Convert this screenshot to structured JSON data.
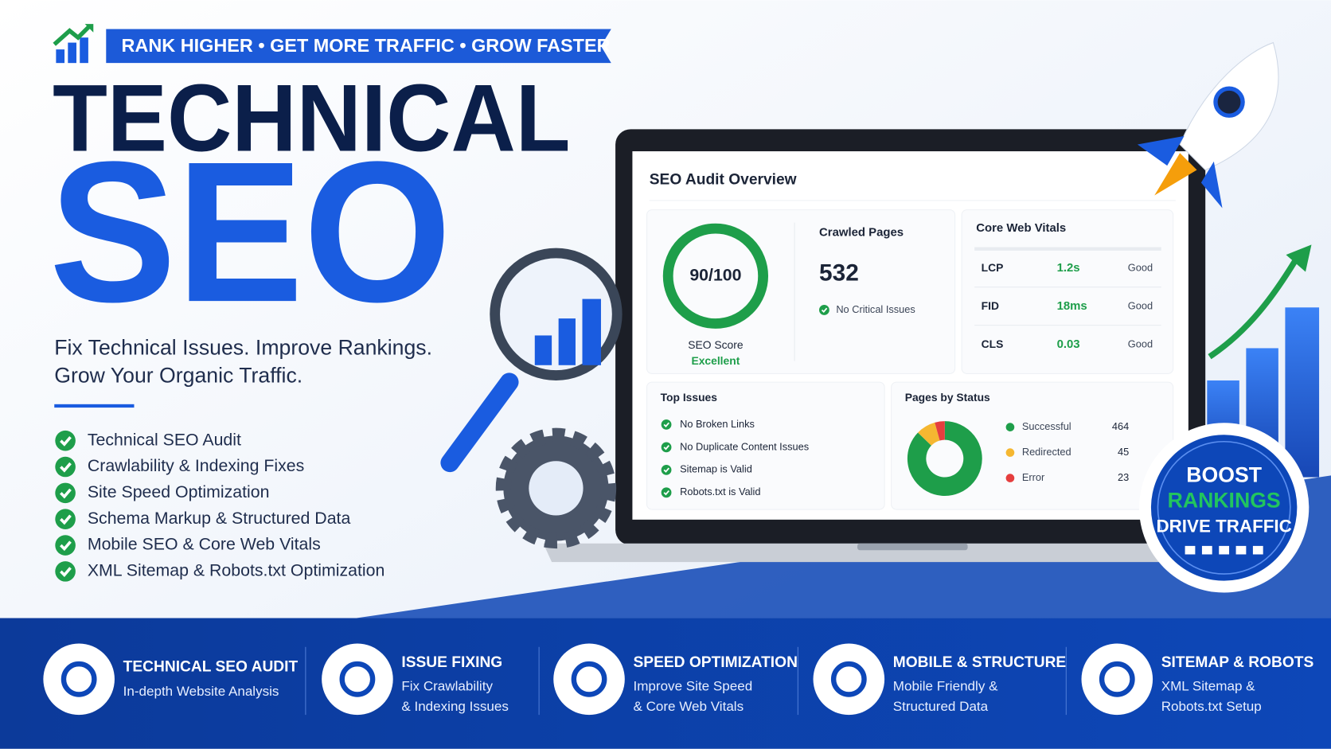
{
  "banner": "RANK HIGHER • GET MORE TRAFFIC • GROW FASTER",
  "title_line1": "TECHNICAL",
  "title_line2": "SEO",
  "tagline": [
    "Fix Technical Issues. Improve Rankings.",
    "Grow Your Organic Traffic."
  ],
  "features": [
    "Technical SEO Audit",
    "Crawlability & Indexing Fixes",
    "Site Speed Optimization",
    "Schema Markup & Structured Data",
    "Mobile SEO & Core Web Vitals",
    "XML Sitemap & Robots.txt Optimization"
  ],
  "dashboard": {
    "title": "SEO Audit Overview",
    "score": {
      "value": "90/100",
      "label": "SEO Score",
      "rating": "Excellent"
    },
    "crawled": {
      "label": "Crawled Pages",
      "value": 532,
      "status": "No Critical Issues"
    },
    "core_web_vitals": {
      "title": "Core Web Vitals",
      "rows": [
        {
          "metric": "LCP",
          "value": "1.2s",
          "rating": "Good"
        },
        {
          "metric": "FID",
          "value": "18ms",
          "rating": "Good"
        },
        {
          "metric": "CLS",
          "value": "0.03",
          "rating": "Good"
        }
      ]
    },
    "top_issues": {
      "title": "Top Issues",
      "items": [
        "No Broken Links",
        "No Duplicate Content Issues",
        "Sitemap is Valid",
        "Robots.txt is Valid"
      ]
    },
    "pages_by_status": {
      "title": "Pages by Status",
      "type": "donut",
      "items": [
        {
          "name": "Successful",
          "value": 464,
          "color": "#1e9e4a"
        },
        {
          "name": "Redirected",
          "value": 45,
          "color": "#f5b731"
        },
        {
          "name": "Error",
          "value": 23,
          "color": "#e53e3e"
        }
      ]
    }
  },
  "badge": [
    "BOOST",
    "RANKINGS",
    "DRIVE TRAFFIC"
  ],
  "services": [
    {
      "title": "TECHNICAL SEO AUDIT",
      "subtitle": [
        "In-depth Website Analysis"
      ]
    },
    {
      "title": "ISSUE FIXING",
      "subtitle": [
        "Fix Crawlability",
        "& Indexing Issues"
      ]
    },
    {
      "title": "SPEED OPTIMIZATION",
      "subtitle": [
        "Improve Site Speed",
        "& Core Web Vitals"
      ]
    },
    {
      "title": "MOBILE & STRUCTURE",
      "subtitle": [
        "Mobile Friendly &",
        "Structured Data"
      ]
    },
    {
      "title": "SITEMAP & ROBOTS",
      "subtitle": [
        "XML Sitemap &",
        "Robots.txt Setup"
      ]
    }
  ]
}
